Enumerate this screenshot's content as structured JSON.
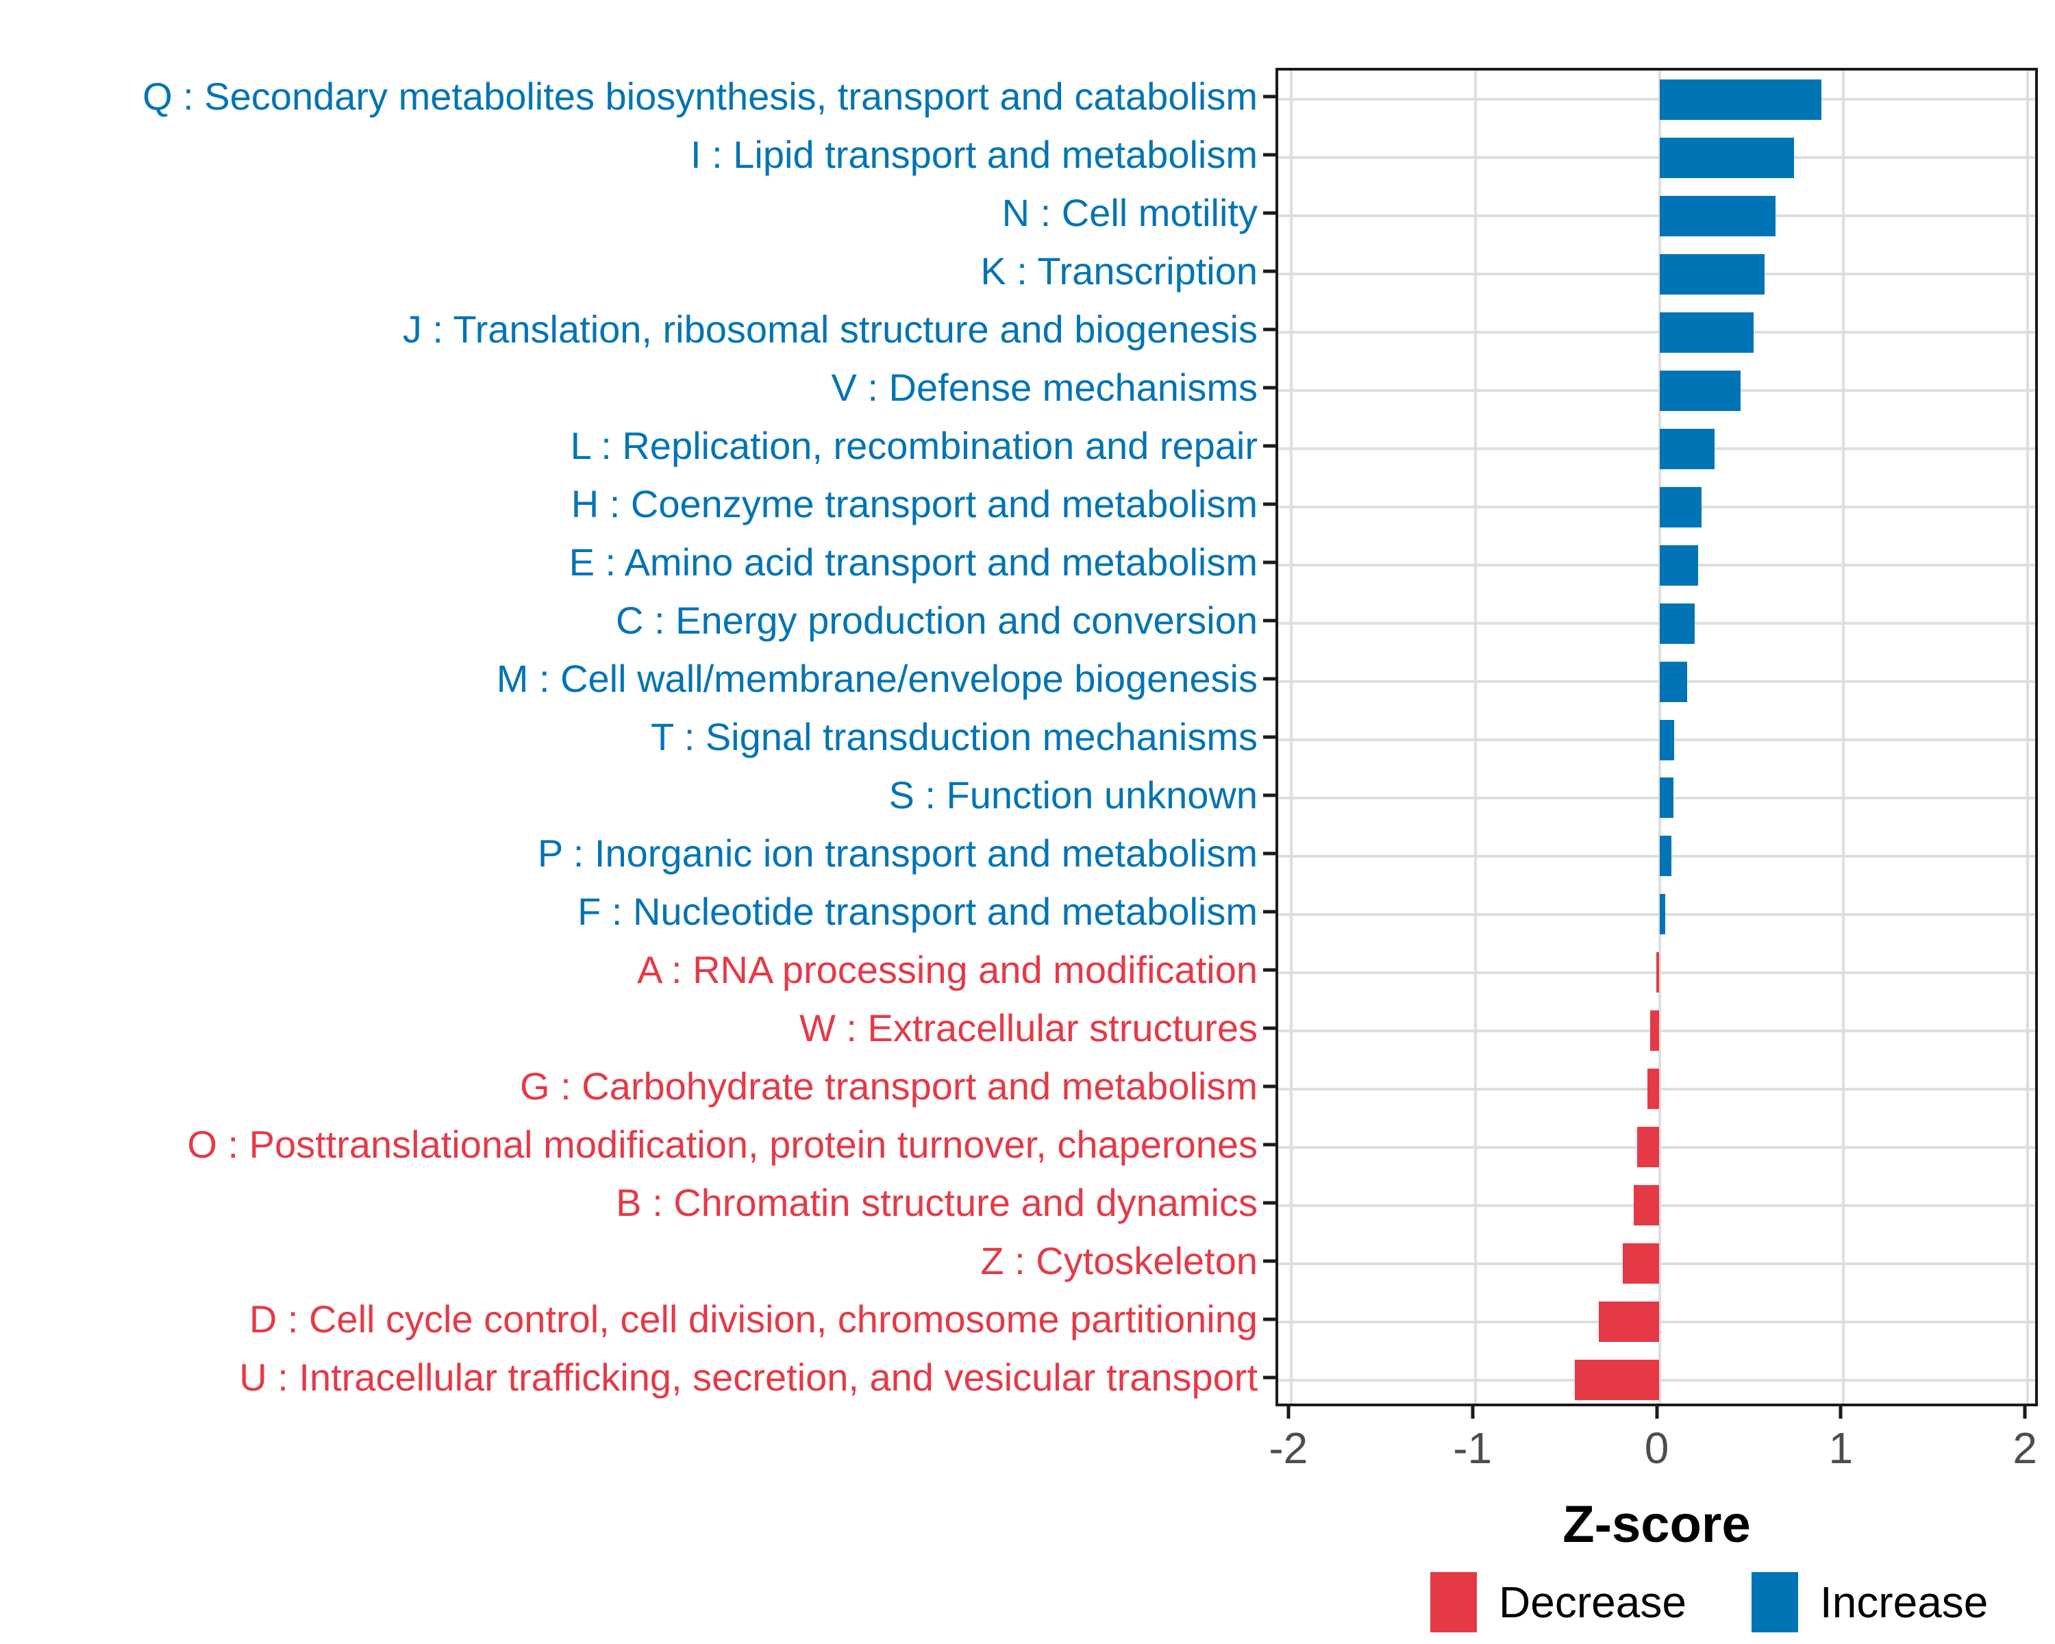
{
  "chart_data": {
    "type": "bar",
    "orientation": "horizontal",
    "xlabel": "Z-score",
    "xlim": [
      -2.07,
      2.07
    ],
    "x_ticks": [
      -2,
      -1,
      0,
      1,
      2
    ],
    "grid": "major-on",
    "colors": {
      "increase": "#0074B5",
      "decrease": "#E63946",
      "gridline": "#dedede",
      "panel_border": "#1a1a1a",
      "axis_text": "#4d4d4d",
      "axis_title": "#000000"
    },
    "legend": {
      "position": "bottom-right",
      "entries": [
        {
          "label": "Decrease",
          "color": "#E63946"
        },
        {
          "label": "Increase",
          "color": "#0074B5"
        }
      ]
    },
    "categories": [
      {
        "label": "Q : Secondary metabolites biosynthesis, transport and catabolism",
        "value": 0.88,
        "group": "increase"
      },
      {
        "label": "I : Lipid transport and metabolism",
        "value": 0.73,
        "group": "increase"
      },
      {
        "label": "N : Cell motility",
        "value": 0.63,
        "group": "increase"
      },
      {
        "label": "K : Transcription",
        "value": 0.57,
        "group": "increase"
      },
      {
        "label": "J : Translation, ribosomal structure and biogenesis",
        "value": 0.51,
        "group": "increase"
      },
      {
        "label": "V : Defense mechanisms",
        "value": 0.44,
        "group": "increase"
      },
      {
        "label": "L : Replication, recombination and repair",
        "value": 0.3,
        "group": "increase"
      },
      {
        "label": "H : Coenzyme transport and metabolism",
        "value": 0.23,
        "group": "increase"
      },
      {
        "label": "E : Amino acid transport and metabolism",
        "value": 0.21,
        "group": "increase"
      },
      {
        "label": "C : Energy production and conversion",
        "value": 0.19,
        "group": "increase"
      },
      {
        "label": "M : Cell wall/membrane/envelope biogenesis",
        "value": 0.15,
        "group": "increase"
      },
      {
        "label": "T : Signal transduction mechanisms",
        "value": 0.08,
        "group": "increase"
      },
      {
        "label": "S : Function unknown",
        "value": 0.075,
        "group": "increase"
      },
      {
        "label": "P : Inorganic ion transport and metabolism",
        "value": 0.065,
        "group": "increase"
      },
      {
        "label": "F : Nucleotide transport and metabolism",
        "value": 0.03,
        "group": "increase"
      },
      {
        "label": "A : RNA processing and modification",
        "value": -0.015,
        "group": "decrease"
      },
      {
        "label": "W : Extracellular structures",
        "value": -0.05,
        "group": "decrease"
      },
      {
        "label": "G : Carbohydrate transport and metabolism",
        "value": -0.065,
        "group": "decrease"
      },
      {
        "label": "O : Posttranslational modification, protein turnover, chaperones",
        "value": -0.12,
        "group": "decrease"
      },
      {
        "label": "B : Chromatin structure and dynamics",
        "value": -0.14,
        "group": "decrease"
      },
      {
        "label": "Z : Cytoskeleton",
        "value": -0.2,
        "group": "decrease"
      },
      {
        "label": "D : Cell cycle control, cell division, chromosome partitioning",
        "value": -0.33,
        "group": "decrease"
      },
      {
        "label": "U : Intracellular trafficking, secretion, and vesicular transport",
        "value": -0.46,
        "group": "decrease"
      }
    ]
  }
}
